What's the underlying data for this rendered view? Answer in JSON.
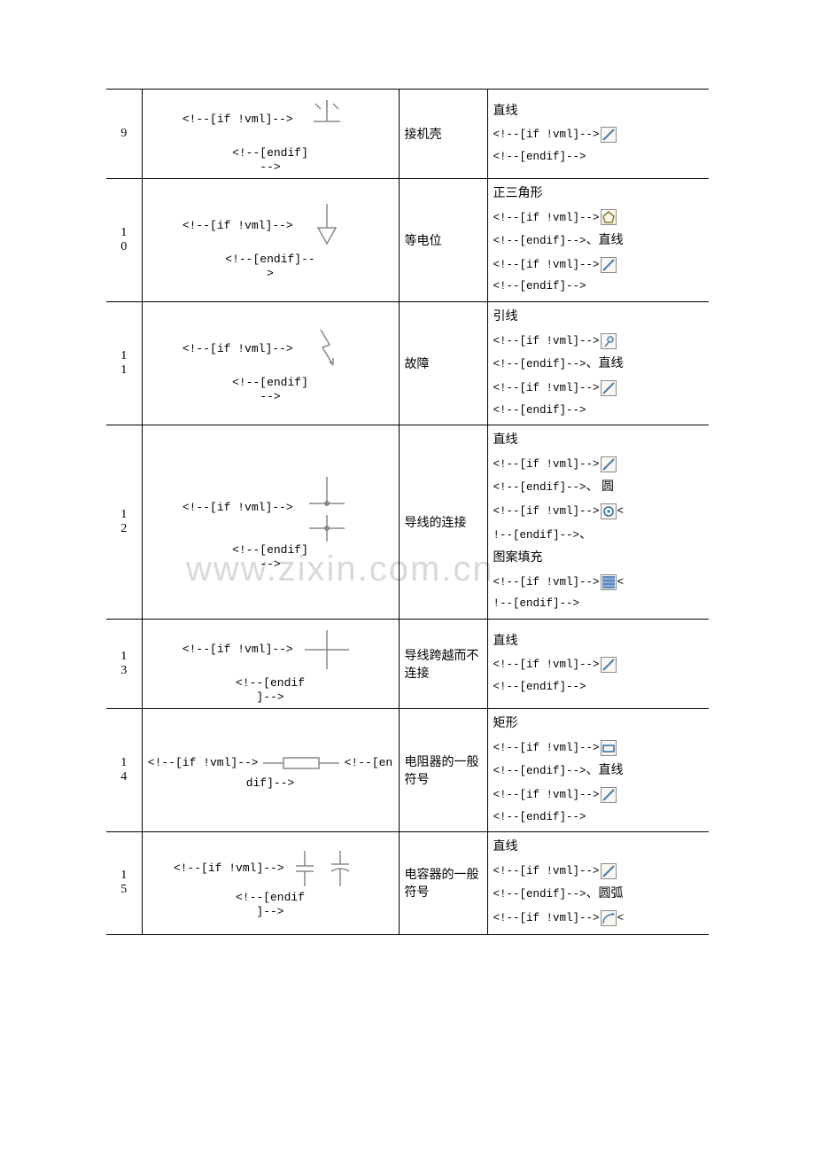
{
  "watermark_text": "www.zixin.com.cn",
  "colors": {
    "border": "#000000",
    "bg": "#ffffff",
    "icon_border": "#888888",
    "icon_bg": "#f8f8f0",
    "watermark": "#d9d9d9",
    "stroke_blue": "#4a7ab0",
    "stroke_gray": "#888888"
  },
  "fonts": {
    "body": "SimSun",
    "code": "Courier New",
    "body_size_pt": 10.5,
    "code_size_pt": 10
  },
  "code_fragments": {
    "if_vml": "<!--[if !vml]-->",
    "endif": "<!--[endif]-->",
    "endif_short": "<!--[endif]-->",
    "endif_open": "<!--[endif]--",
    "close": ">",
    "if_vml_open": "<!--[if !vml]-->",
    "endif_nl": "<!--[endif]-->"
  },
  "rows": [
    {
      "num": "9",
      "name": "接机壳",
      "desc_items": [
        {
          "type": "text",
          "value": "直线"
        },
        {
          "type": "code_icon",
          "pre": "<!--[if !vml]-->",
          "icon": "line"
        },
        {
          "type": "code",
          "value": "<!--[endif]-->"
        }
      ],
      "symbol": "ground"
    },
    {
      "num": "10",
      "name": "等电位",
      "desc_items": [
        {
          "type": "text",
          "value": "正三角形"
        },
        {
          "type": "code_icon",
          "pre": "<!--[if !vml]-->",
          "icon": "pentagon"
        },
        {
          "type": "code_sep",
          "value": "<!--[endif]-->",
          "sep": "、直线"
        },
        {
          "type": "code_icon",
          "pre": "<!--[if !vml]-->",
          "icon": "line"
        },
        {
          "type": "code",
          "value": "<!--[endif]-->"
        }
      ],
      "symbol": "equipotential"
    },
    {
      "num": "11",
      "name": "故障",
      "desc_items": [
        {
          "type": "text",
          "value": "引线"
        },
        {
          "type": "code_icon",
          "pre": "<!--[if !vml]-->",
          "icon": "lead"
        },
        {
          "type": "code_sep",
          "value": "<!--[endif]-->",
          "sep": "、直线"
        },
        {
          "type": "code_icon",
          "pre": "<!--[if !vml]-->",
          "icon": "line"
        },
        {
          "type": "code",
          "value": "<!--[endif]-->"
        }
      ],
      "symbol": "fault"
    },
    {
      "num": "12",
      "name": "导线的连接",
      "desc_items": [
        {
          "type": "text",
          "value": "直线"
        },
        {
          "type": "code_icon",
          "pre": "<!--[if !vml]-->",
          "icon": "line"
        },
        {
          "type": "code_sep",
          "value": "<!--[endif]-->",
          "sep": "、 圆"
        },
        {
          "type": "code_icon_inline",
          "pre": "<!--[if !vml]-->",
          "icon": "circle",
          "post": "<"
        },
        {
          "type": "code_sep",
          "value": "!--[endif]-->",
          "sep": "、"
        },
        {
          "type": "text",
          "value": "图案填充"
        },
        {
          "type": "code_icon_inline",
          "pre": "<!--[if !vml]-->",
          "icon": "fill",
          "post": "<"
        },
        {
          "type": "code",
          "value": "!--[endif]-->"
        }
      ],
      "symbol": "connection"
    },
    {
      "num": "13",
      "name": "导线跨越而不连接",
      "desc_items": [
        {
          "type": "text",
          "value": "直线"
        },
        {
          "type": "code_icon",
          "pre": "<!--[if !vml]-->",
          "icon": "line"
        },
        {
          "type": "code",
          "value": "<!--[endif]-->"
        }
      ],
      "symbol": "crossing"
    },
    {
      "num": "14",
      "name": "电阻器的一般符号",
      "desc_items": [
        {
          "type": "text",
          "value": "矩形"
        },
        {
          "type": "code_icon",
          "pre": "<!--[if !vml]-->",
          "icon": "rect"
        },
        {
          "type": "code_sep",
          "value": "<!--[endif]-->",
          "sep": "、直线"
        },
        {
          "type": "code_icon",
          "pre": "<!--[if !vml]-->",
          "icon": "line"
        },
        {
          "type": "code",
          "value": "<!--[endif]-->"
        }
      ],
      "symbol": "resistor"
    },
    {
      "num": "15",
      "name": "电容器的一般符号",
      "desc_items": [
        {
          "type": "text",
          "value": "直线"
        },
        {
          "type": "code_icon",
          "pre": "<!--[if !vml]-->",
          "icon": "line"
        },
        {
          "type": "code_sep",
          "value": "<!--[endif]-->",
          "sep": "、圆弧"
        },
        {
          "type": "code_icon_inline",
          "pre": "<!--[if !vml]-->",
          "icon": "arc",
          "post": "<"
        }
      ],
      "symbol": "capacitor"
    }
  ]
}
